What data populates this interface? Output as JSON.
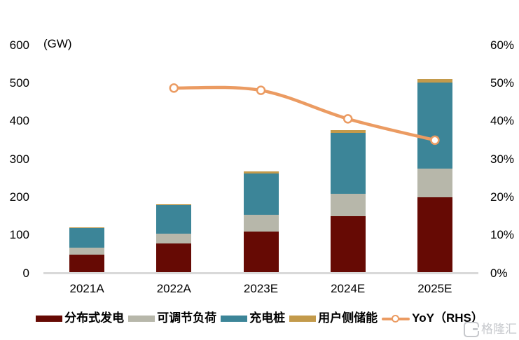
{
  "chart_data": {
    "type": "bar",
    "subtype": "stacked-bars-with-line",
    "categories": [
      "2021A",
      "2022A",
      "2023E",
      "2024E",
      "2025E"
    ],
    "stack_series": [
      {
        "name": "分布式发电",
        "color": "#660a04",
        "values": [
          48,
          78,
          110,
          150,
          199
        ]
      },
      {
        "name": "可调节负荷",
        "color": "#b7b7aa",
        "values": [
          20,
          26,
          43,
          59,
          77
        ]
      },
      {
        "name": "充电桩",
        "color": "#3c8598",
        "values": [
          52,
          75,
          110,
          160,
          225
        ]
      },
      {
        "name": "用户侧储能",
        "color": "#c39a4b",
        "values": [
          1,
          2,
          5,
          7,
          10
        ]
      }
    ],
    "stack_totals": [
      121,
      181,
      268,
      376,
      511
    ],
    "line_series": {
      "name": "YoY（RHS）",
      "color": "#eb9b62",
      "axis": "right",
      "values": [
        null,
        48.7,
        48.1,
        40.6,
        35.0
      ]
    },
    "title": "",
    "xlabel": "",
    "left_axis": {
      "unit": "(GW)",
      "min": 0,
      "max": 600,
      "step": 100
    },
    "right_axis": {
      "min": 0,
      "max": 60,
      "step": 10,
      "suffix": "%"
    },
    "grid": false,
    "legend_position": "bottom"
  },
  "watermark": {
    "logo_glyph": "G",
    "text": "格隆汇"
  }
}
